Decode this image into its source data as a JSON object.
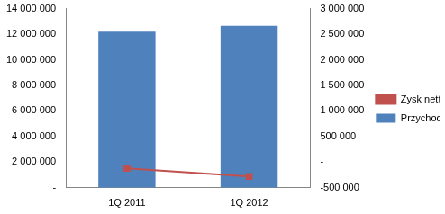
{
  "chart_data": {
    "type": "bar",
    "categories": [
      "1Q 2011",
      "1Q 2012"
    ],
    "series": [
      {
        "name": "Przychody",
        "type": "bar",
        "color": "#4f81bd",
        "values": [
          12200000,
          12650000
        ]
      },
      {
        "name": "Zysk netto",
        "type": "line",
        "color": "#c0504d",
        "marker": "square",
        "axis": "y2",
        "values": [
          -120000,
          -280000
        ]
      }
    ],
    "ylim": [
      0,
      14000000
    ],
    "yticks": [
      {
        "value": 0,
        "label": "-"
      },
      {
        "value": 2000000,
        "label": "2 000 000"
      },
      {
        "value": 4000000,
        "label": "4 000 000"
      },
      {
        "value": 6000000,
        "label": "6 000 000"
      },
      {
        "value": 8000000,
        "label": "8 000 000"
      },
      {
        "value": 10000000,
        "label": "10 000 000"
      },
      {
        "value": 12000000,
        "label": "12 000 000"
      },
      {
        "value": 14000000,
        "label": "14 000 000"
      }
    ],
    "y2lim": [
      -500000,
      3000000
    ],
    "y2ticks": [
      {
        "value": -500000,
        "label": "-500 000"
      },
      {
        "value": 0,
        "label": "-"
      },
      {
        "value": 500000,
        "label": "500 000"
      },
      {
        "value": 1000000,
        "label": "1 000 000"
      },
      {
        "value": 1500000,
        "label": "1 500 000"
      },
      {
        "value": 2000000,
        "label": "2 000 000"
      },
      {
        "value": 2500000,
        "label": "2 500 000"
      },
      {
        "value": 3000000,
        "label": "3 000 000"
      }
    ],
    "grid": false,
    "legend": "right"
  }
}
